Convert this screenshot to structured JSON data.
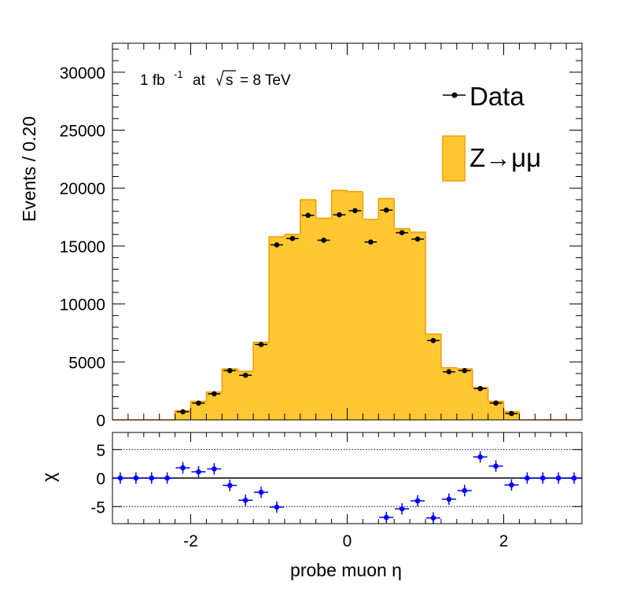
{
  "chart_data": [
    {
      "type": "bar",
      "panel": "main",
      "ylabel": "Events / 0.20",
      "annotation": {
        "lumi": "1 fb",
        "lumi_exp": "-1",
        "at": "at",
        "sqrt": "s",
        "energy": "= 8 TeV"
      },
      "legend": {
        "position": "top-right",
        "data_label": "Data",
        "mc_label": "Z→μμ"
      },
      "xlim": [
        -3,
        3
      ],
      "ylim": [
        0,
        32500
      ],
      "y_ticks": [
        0,
        5000,
        10000,
        15000,
        20000,
        25000,
        30000
      ],
      "bin_edges": [
        -3.0,
        -2.8,
        -2.6,
        -2.4,
        -2.2,
        -2.0,
        -1.8,
        -1.6,
        -1.4,
        -1.2,
        -1.0,
        -0.8,
        -0.6,
        -0.4,
        -0.2,
        0.0,
        0.2,
        0.4,
        0.6,
        0.8,
        1.0,
        1.2,
        1.4,
        1.6,
        1.8,
        2.0,
        2.2,
        2.4,
        2.6,
        2.8,
        3.0
      ],
      "series": [
        {
          "name": "Z→μμ",
          "kind": "histogram",
          "color": "#ffc832",
          "line": "#f59a00",
          "values": [
            0,
            0,
            0,
            0,
            800,
            1600,
            2400,
            4400,
            4200,
            6700,
            15800,
            16000,
            19000,
            17400,
            19800,
            19700,
            17300,
            19100,
            16500,
            16200,
            7400,
            4500,
            4400,
            2800,
            1600,
            700,
            0,
            0,
            0,
            0
          ]
        },
        {
          "name": "Data",
          "kind": "points",
          "color": "#000000",
          "values": [
            0,
            0,
            0,
            0,
            700,
            1450,
            2250,
            4250,
            3850,
            6500,
            15100,
            15650,
            17650,
            15500,
            17700,
            18050,
            15350,
            18100,
            16150,
            15600,
            6850,
            4150,
            4250,
            2700,
            1450,
            550,
            0,
            0,
            0,
            0
          ]
        }
      ]
    },
    {
      "type": "scatter",
      "panel": "ratio",
      "ylabel": "χ",
      "xlabel": "probe muon η",
      "xlim": [
        -3,
        3
      ],
      "ylim": [
        -8,
        8
      ],
      "x_ticks": [
        -2,
        0,
        2
      ],
      "y_ticks": [
        -5,
        0,
        5
      ],
      "reference_lines": [
        -5,
        5
      ],
      "series": [
        {
          "name": "",
          "color": "#0000ff",
          "x": [
            -2.9,
            -2.7,
            -2.5,
            -2.3,
            -2.1,
            -1.9,
            -1.7,
            -1.5,
            -1.3,
            -1.1,
            -0.9,
            0.5,
            0.7,
            0.9,
            1.1,
            1.3,
            1.5,
            1.7,
            1.9,
            2.1,
            2.3,
            2.5,
            2.7,
            2.9
          ],
          "values": [
            0,
            0,
            0,
            0,
            1.8,
            1.1,
            1.6,
            -1.3,
            -3.9,
            -2.5,
            -5.1,
            -6.9,
            -5.4,
            -4.0,
            -7.0,
            -3.7,
            -2.2,
            3.7,
            2.1,
            -1.2,
            0,
            0,
            0,
            0
          ]
        }
      ]
    }
  ]
}
